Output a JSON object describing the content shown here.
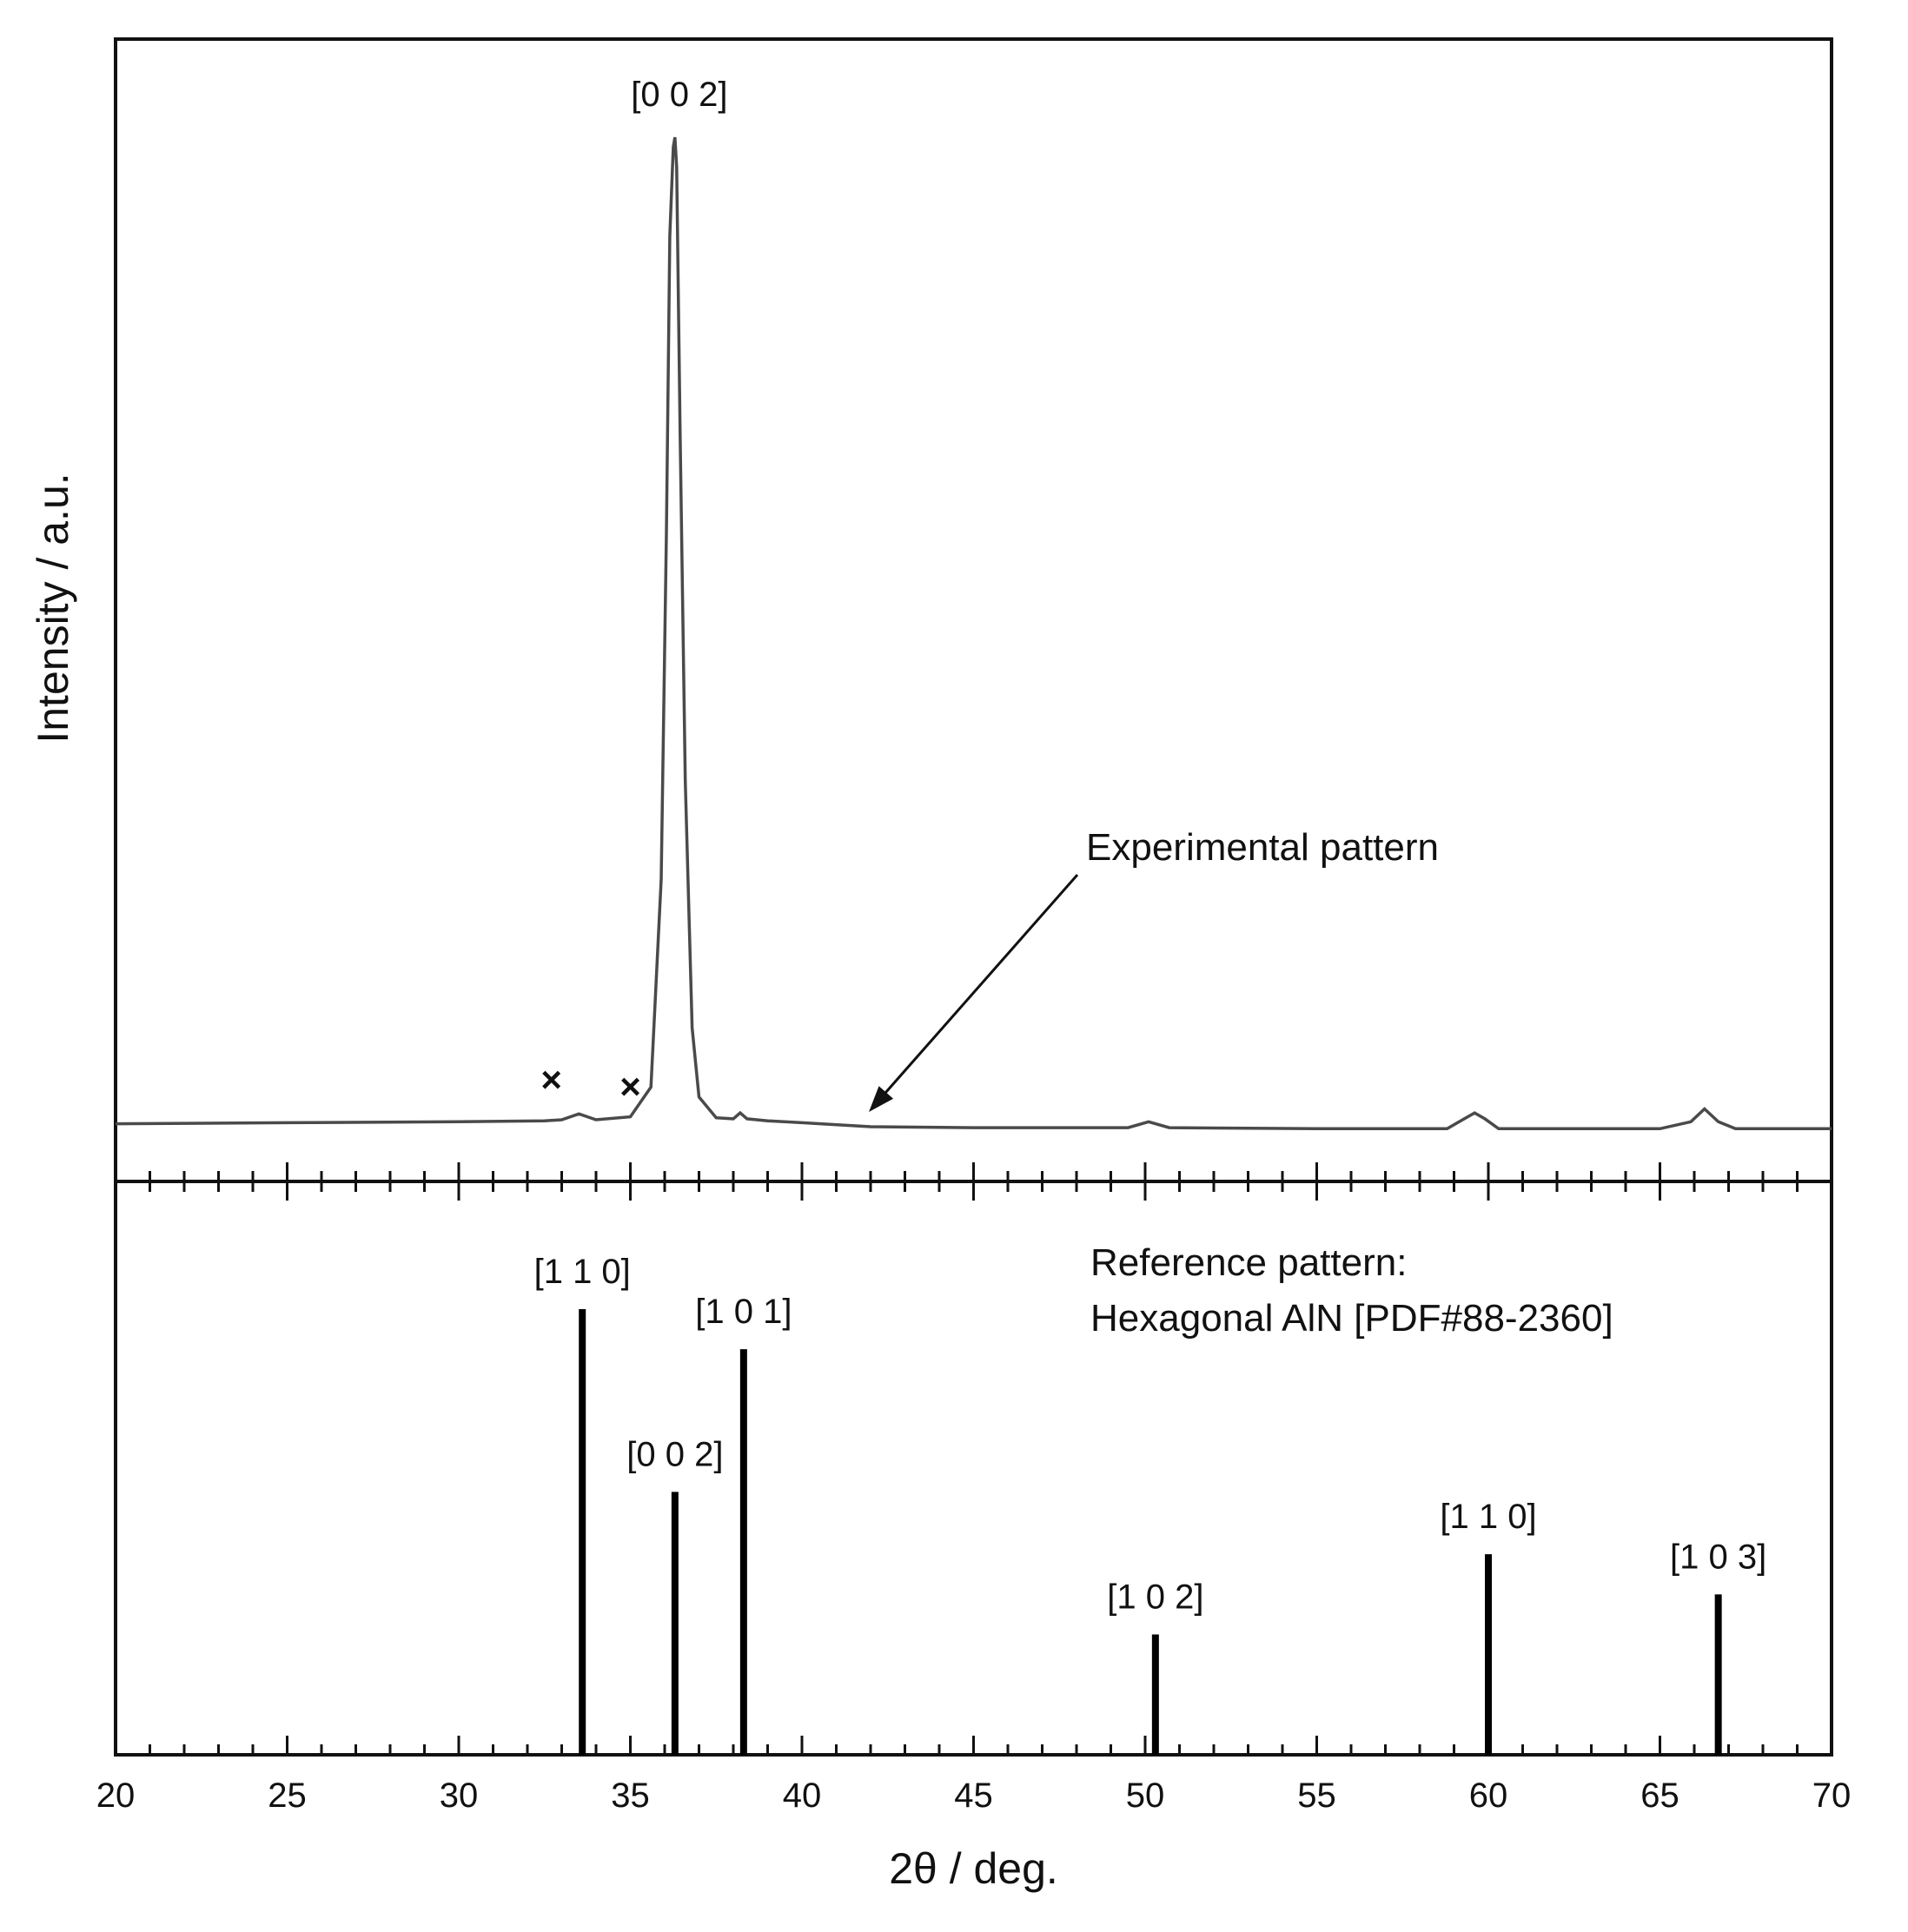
{
  "chart_data": {
    "type": "line",
    "xlabel": "2θ /  deg.",
    "ylabel": "Intensity / a.u.",
    "xlim": [
      20,
      70
    ],
    "x_ticks": [
      20,
      25,
      30,
      35,
      40,
      45,
      50,
      55,
      60,
      65,
      70
    ],
    "grid": false,
    "panels": [
      {
        "name": "experimental",
        "type": "line",
        "annotation": "Experimental pattern",
        "peak_label": "[0 0 2]",
        "peak_position": 36.3,
        "impurity_markers": [
          {
            "x": 32.7,
            "symbol": "×"
          },
          {
            "x": 35.0,
            "symbol": "×"
          }
        ],
        "series": [
          {
            "x": [
              20,
              25,
              30,
              32.5,
              33.0,
              33.5,
              34.0,
              35.0,
              35.6,
              35.9,
              36.05,
              36.15,
              36.25,
              36.3,
              36.35,
              36.45,
              36.6,
              36.8,
              37.0,
              37.5,
              38.0,
              38.2,
              38.4,
              39.0,
              40,
              42,
              45,
              49.5,
              50.1,
              50.7,
              55,
              58.8,
              59.3,
              59.6,
              59.9,
              60.3,
              62,
              65,
              65.9,
              66.3,
              66.7,
              67.2,
              70
            ],
            "values": [
              0.003,
              0.004,
              0.005,
              0.006,
              0.007,
              0.013,
              0.007,
              0.01,
              0.04,
              0.25,
              0.6,
              0.9,
              0.99,
              1.0,
              0.97,
              0.7,
              0.35,
              0.1,
              0.03,
              0.009,
              0.008,
              0.014,
              0.008,
              0.006,
              0.004,
              0.0,
              -0.001,
              -0.001,
              0.005,
              -0.001,
              -0.002,
              -0.002,
              0.008,
              0.014,
              0.008,
              -0.002,
              -0.002,
              -0.002,
              0.005,
              0.018,
              0.005,
              -0.002,
              -0.002
            ]
          }
        ]
      },
      {
        "name": "reference",
        "type": "stick",
        "annotation_line1": "Reference pattern:",
        "annotation_line2": "Hexagonal AlN [PDF#88-2360]",
        "series": [
          {
            "x": [
              33.6,
              36.3,
              38.3,
              50.3,
              60.0,
              66.7
            ],
            "values": [
              100,
              59,
              91,
              27,
              45,
              36
            ],
            "labels": [
              "[1 1 0]",
              "[0 0 2]",
              "[1 0 1]",
              "[1 0 2]",
              "[1 1 0]",
              "[1 0 3]"
            ]
          }
        ]
      }
    ]
  }
}
